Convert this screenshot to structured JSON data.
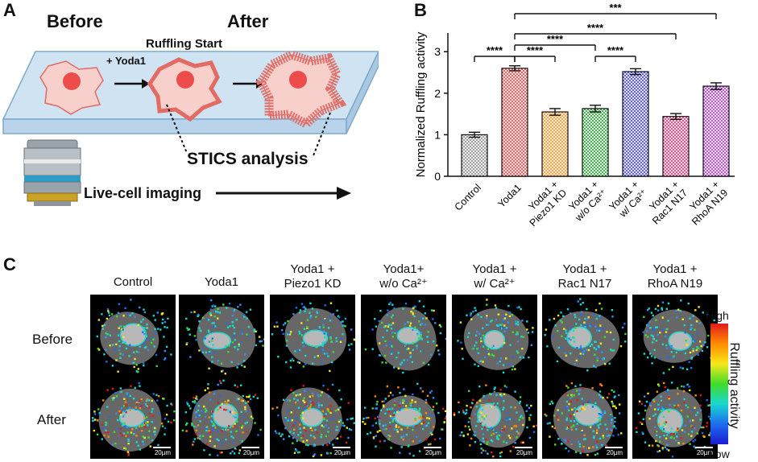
{
  "panelA": {
    "label": "A",
    "before": "Before",
    "after": "After",
    "ruffling_start": "Ruffling Start",
    "yoda_step": "+ Yoda1",
    "stics": "STICS analysis",
    "live_imaging": "Live-cell imaging"
  },
  "panelB": {
    "label": "B"
  },
  "panelC": {
    "label": "C",
    "columns": [
      {
        "line1": "Control",
        "line2": ""
      },
      {
        "line1": "Yoda1",
        "line2": ""
      },
      {
        "line1": "Yoda1  +",
        "line2": "Piezo1  KD"
      },
      {
        "line1": "Yoda1+",
        "line2": "w/o Ca²⁺"
      },
      {
        "line1": "Yoda1  +",
        "line2": "w/ Ca²⁺"
      },
      {
        "line1": "Yoda1  +",
        "line2": "Rac1  N17"
      },
      {
        "line1": "Yoda1  +",
        "line2": "RhoA  N19"
      }
    ],
    "rows": [
      "Before",
      "After"
    ],
    "scale_bar": "20µm",
    "colorbar": {
      "high": "High",
      "low": "Low",
      "title": "Ruffling activity"
    }
  },
  "colors": {
    "control": "#888888",
    "yoda": "#ef3b3b",
    "piezo": "#ff8c1a",
    "woca": "#1f9e2c",
    "wca": "#3a3ae6",
    "rac": "#e8286e",
    "rhoa": "#a62ec6",
    "cell_fill": "#f6c7c4",
    "cell_edge": "#e05a5a",
    "nucleus": "#ee4b4b",
    "slide": "#cfe3f2"
  },
  "chart_data": {
    "type": "bar",
    "ylabel": "Normalized Ruffling activity",
    "ylim": [
      0,
      3.4
    ],
    "yticks": [
      0,
      1,
      2,
      3
    ],
    "categories": [
      "Control",
      "Yoda1",
      "Yoda1 +|Piezo1 KD",
      "Yoda1 +|w/o Ca²⁺",
      "Yoda1 +|w/ Ca²⁺",
      "Yoda1 +|Rac1 N17",
      "Yoda1 +|RhoA N19"
    ],
    "values": [
      1.0,
      2.6,
      1.55,
      1.63,
      2.52,
      1.44,
      2.17
    ],
    "errors": [
      0.06,
      0.06,
      0.08,
      0.08,
      0.07,
      0.07,
      0.08
    ],
    "significance": [
      {
        "from": 0,
        "to": 1,
        "label": "****"
      },
      {
        "from": 1,
        "to": 2,
        "label": "****"
      },
      {
        "from": 1,
        "to": 3,
        "label": "****"
      },
      {
        "from": 3,
        "to": 4,
        "label": "****"
      },
      {
        "from": 1,
        "to": 5,
        "label": "****"
      },
      {
        "from": 1,
        "to": 6,
        "label": "***"
      }
    ]
  }
}
